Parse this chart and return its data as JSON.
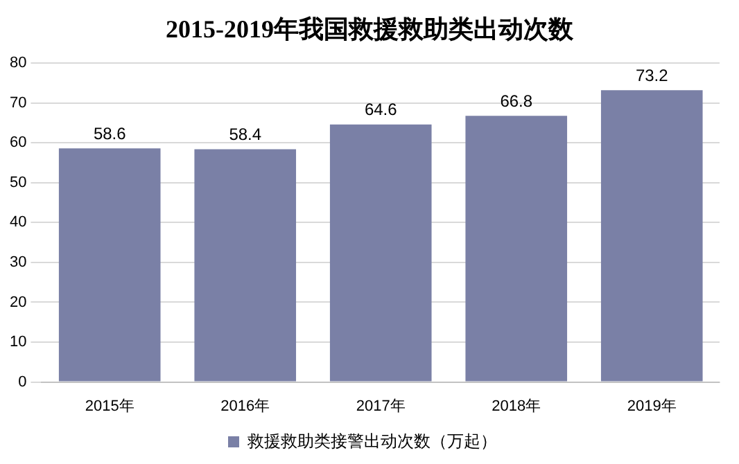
{
  "chart_data": {
    "type": "bar",
    "title": "2015-2019年我国救援救助类出动次数",
    "categories": [
      "2015年",
      "2016年",
      "2017年",
      "2018年",
      "2019年"
    ],
    "series": [
      {
        "name": "救援救助类接警出动次数（万起）",
        "color": "#7a80a6",
        "values": [
          58.6,
          58.4,
          64.6,
          66.8,
          73.2
        ]
      }
    ],
    "ylim": [
      0,
      80
    ],
    "yticks": [
      0,
      10,
      20,
      30,
      40,
      50,
      60,
      70,
      80
    ],
    "grid": "y",
    "legend": "bottom",
    "data_labels": true
  }
}
